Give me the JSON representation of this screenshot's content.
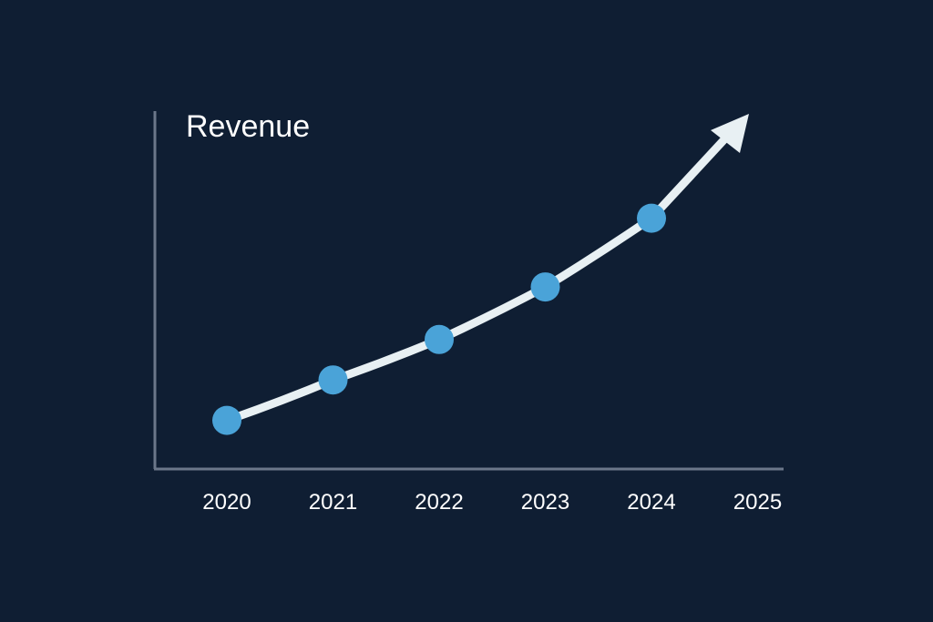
{
  "colors": {
    "background": "#0f1e33",
    "axis": "#6b778a",
    "line": "#e8f0f3",
    "point": "#4aa3d8",
    "text": "#ffffff"
  },
  "chart_data": {
    "type": "line",
    "title": "Revenue",
    "xlabel": "",
    "ylabel": "",
    "x": [
      "2020",
      "2021",
      "2022",
      "2023",
      "2024"
    ],
    "x_ticks": [
      "2020",
      "2021",
      "2022",
      "2023",
      "2024",
      "2025"
    ],
    "series": [
      {
        "values": [
          1.0,
          2.0,
          3.0,
          4.3,
          6.0
        ]
      }
    ],
    "trend_arrow": true,
    "ylim": [
      0,
      10
    ],
    "grid": false,
    "legend": "none"
  }
}
